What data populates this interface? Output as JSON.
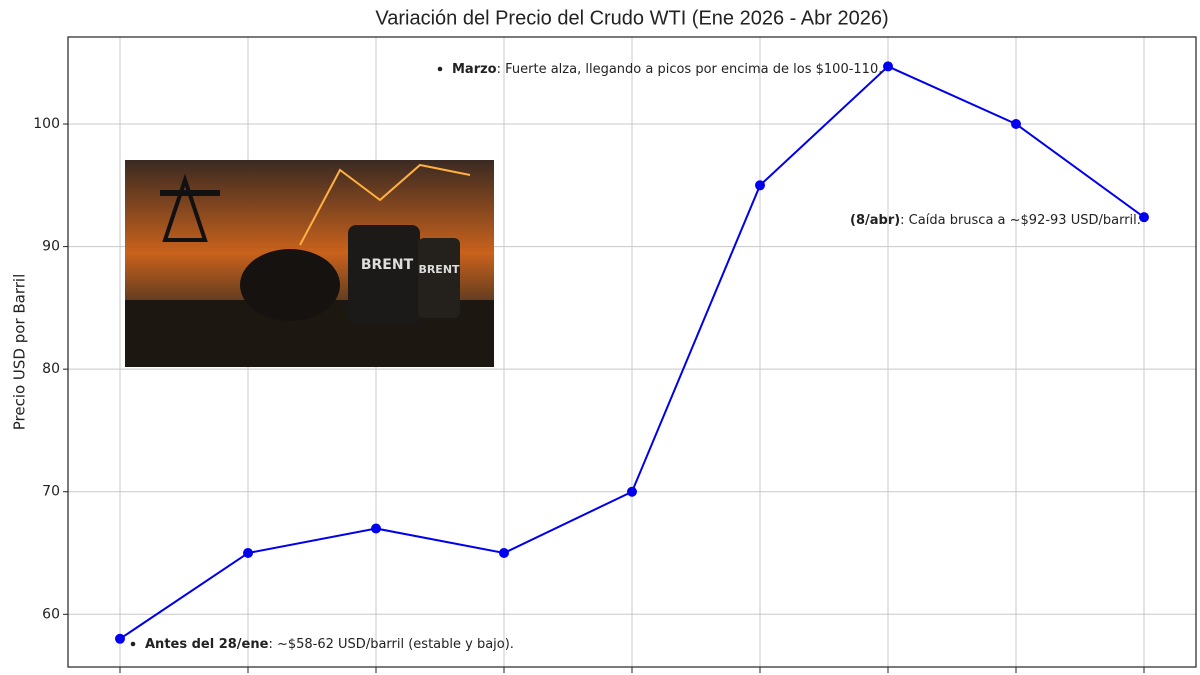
{
  "chart_data": {
    "type": "line",
    "title": "Variación del Precio del Crudo WTI (Ene 2026 - Abr 2026)",
    "y_label": "Precio USD por Barril",
    "categories": [
      null,
      null,
      null,
      null,
      null,
      null,
      null,
      null,
      null
    ],
    "series": [
      {
        "name": null,
        "color": "#0000ee",
        "values": [
          58,
          65,
          67,
          65,
          70,
          95,
          104.7,
          100,
          92.4
        ]
      }
    ],
    "ylim": [
      55.7,
      107.1
    ],
    "yticks": [
      60,
      70,
      80,
      90,
      100
    ],
    "grid": true,
    "annotations": [
      {
        "bold": "Marzo",
        "text": ": Fuerte alza, llegando a picos por encima de los $100-110."
      },
      {
        "bold": "(8/abr)",
        "text": ": Caída brusca a ~$92-93 USD/barril."
      },
      {
        "bold": "Antes del 28/ene",
        "text": ": ~$58-62 USD/barril (estable y bajo)."
      }
    ],
    "image": {
      "labels": [
        "BRENT",
        "BRENT"
      ]
    }
  }
}
